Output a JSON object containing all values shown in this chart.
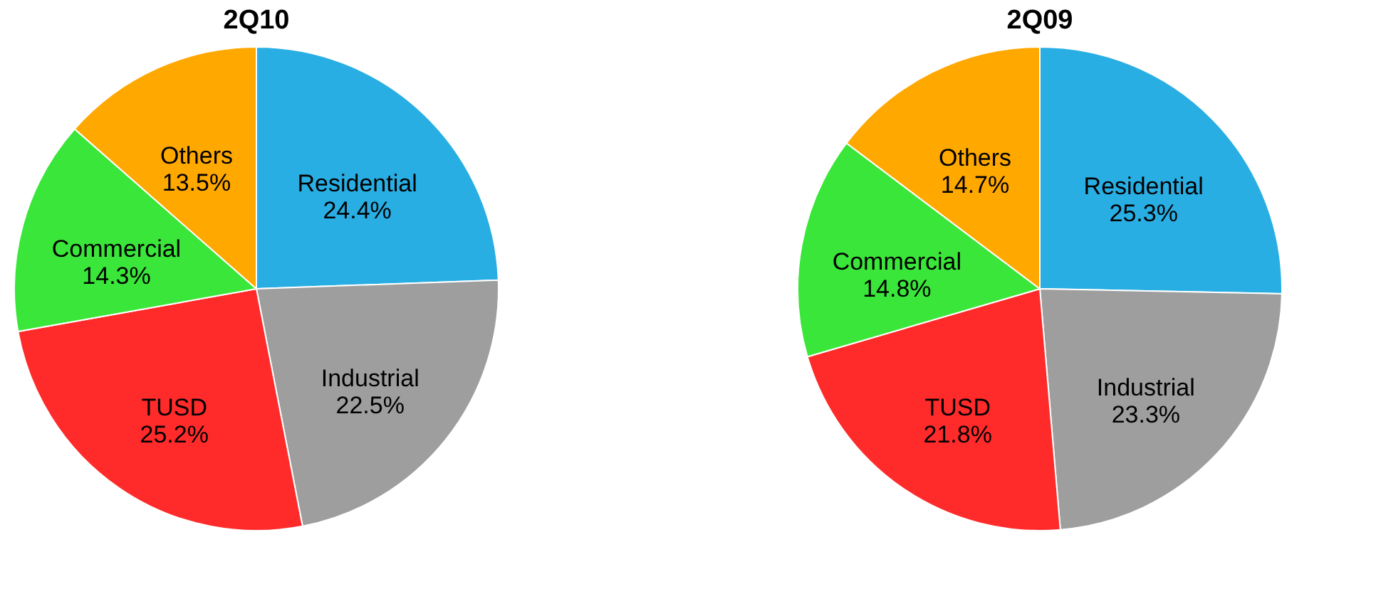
{
  "chart_data": [
    {
      "type": "pie",
      "title": "2Q10",
      "categories": [
        "Residential",
        "Industrial",
        "TUSD",
        "Commercial",
        "Others"
      ],
      "values": [
        24.4,
        22.5,
        25.2,
        14.3,
        13.5
      ],
      "value_labels": [
        "24.4%",
        "22.5%",
        "25.2%",
        "14.3%",
        "13.5%"
      ],
      "colors": [
        "#29aee3",
        "#9e9e9e",
        "#ff2b2b",
        "#3ae63a",
        "#ffa800"
      ],
      "legend": false
    },
    {
      "type": "pie",
      "title": "2Q09",
      "categories": [
        "Residential",
        "Industrial",
        "TUSD",
        "Commercial",
        "Others"
      ],
      "values": [
        25.3,
        23.3,
        21.8,
        14.8,
        14.7
      ],
      "value_labels": [
        "25.3%",
        "23.3%",
        "21.8%",
        "14.8%",
        "14.7%"
      ],
      "colors": [
        "#29aee3",
        "#9e9e9e",
        "#ff2b2b",
        "#3ae63a",
        "#ffa800"
      ],
      "legend": false
    }
  ]
}
